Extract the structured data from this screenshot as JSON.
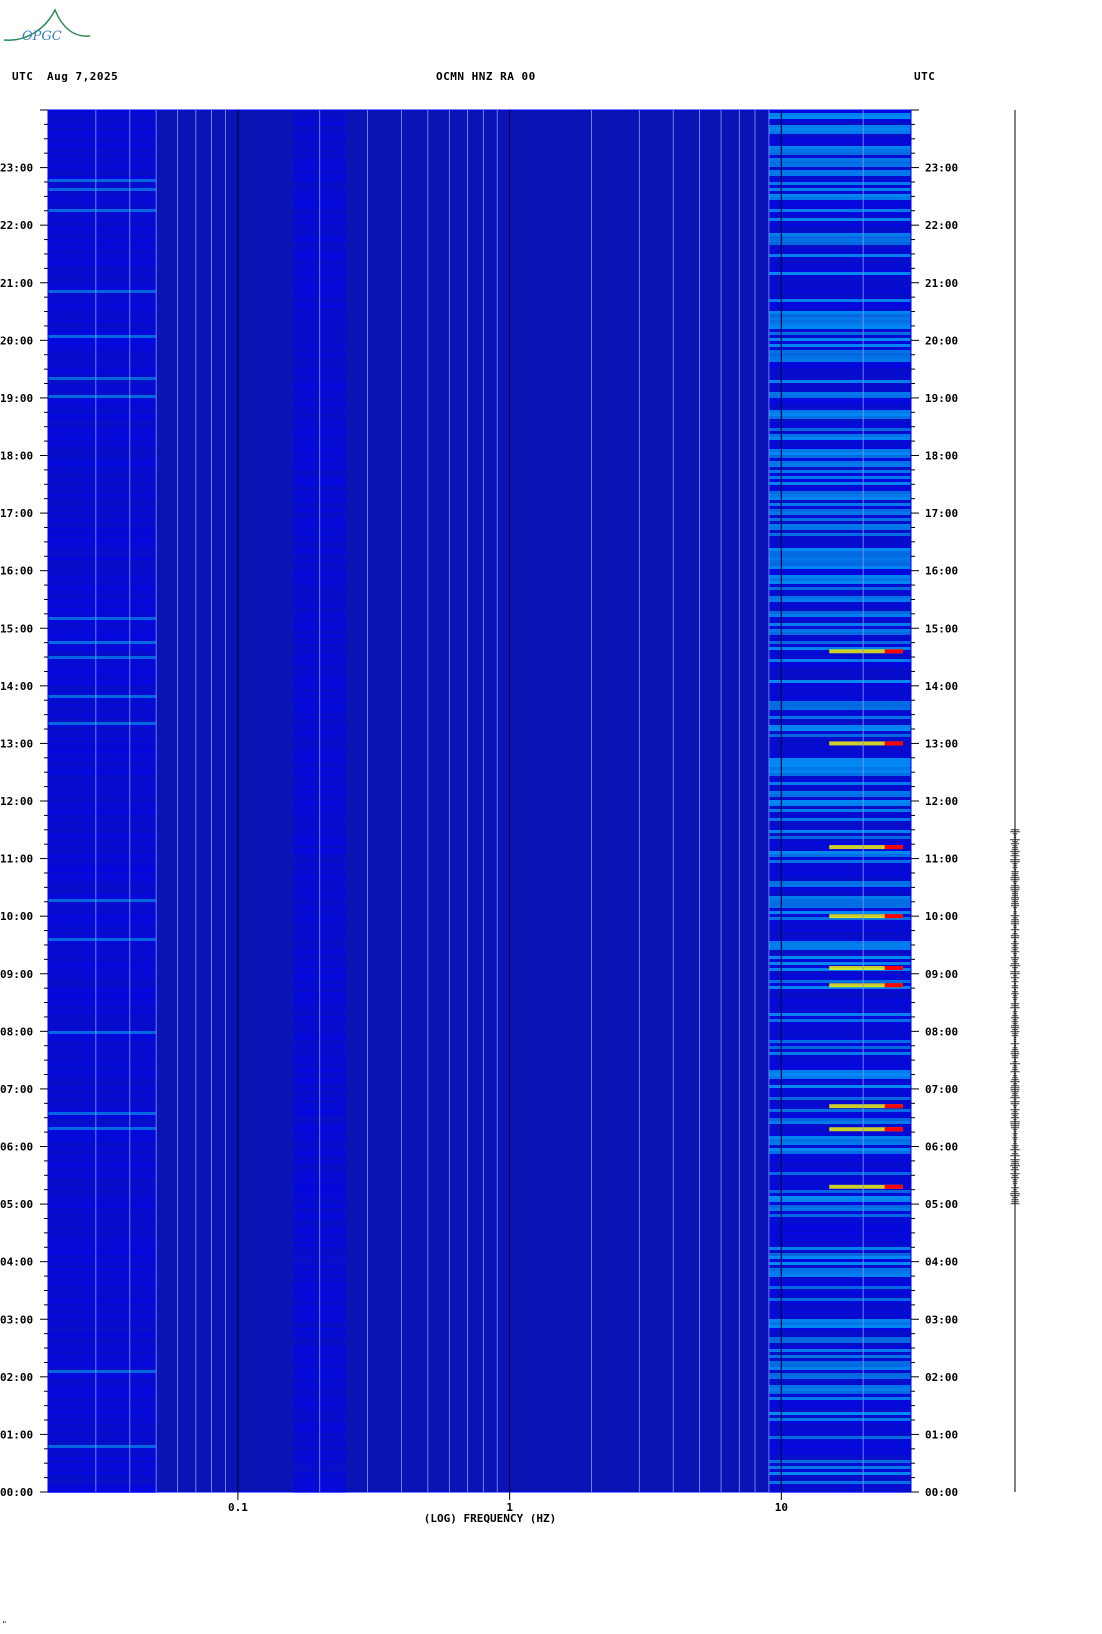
{
  "logo": {
    "text": "OPGC",
    "color": "#2e8b57"
  },
  "header": {
    "left_tz": "UTC",
    "date": "Aug 7,2025",
    "station": "OCMN HNZ RA 00",
    "right_tz": "UTC"
  },
  "corner_mark": "\"",
  "colors": {
    "background": "#0a14b4",
    "frame": "#0000ff",
    "high_energy": "#ffff00",
    "peak": "#ff0000"
  },
  "chart_data": {
    "type": "heatmap",
    "title": "OCMN HNZ RA 00",
    "xlabel": "(LOG) FREQUENCY (HZ)",
    "ylabel": "",
    "x_scale": "log",
    "xlim": [
      0.02,
      30
    ],
    "x_ticks": [
      {
        "value": 0.1,
        "label": "0.1"
      },
      {
        "value": 1,
        "label": "1"
      },
      {
        "value": 10,
        "label": "10"
      }
    ],
    "ylim_hours": [
      0,
      24
    ],
    "y_ticks": [
      "00:00",
      "01:00",
      "02:00",
      "03:00",
      "04:00",
      "05:00",
      "06:00",
      "07:00",
      "08:00",
      "09:00",
      "10:00",
      "11:00",
      "12:00",
      "13:00",
      "14:00",
      "15:00",
      "16:00",
      "17:00",
      "18:00",
      "19:00",
      "20:00",
      "21:00",
      "22:00",
      "23:00"
    ],
    "time_axis_label": "UTC",
    "grid": true,
    "colorscale": [
      "#0000a0",
      "#0000ff",
      "#00a0ff",
      "#00ffff",
      "#ffff00",
      "#ff0000"
    ],
    "energy_bands": [
      {
        "fmin": 0.02,
        "fmax": 0.05,
        "level": 0.35
      },
      {
        "fmin": 0.16,
        "fmax": 0.25,
        "level": 0.3
      },
      {
        "fmin": 9,
        "fmax": 30,
        "level": 0.6
      }
    ],
    "high_energy_hours": [
      5.3,
      6.3,
      6.7,
      8.8,
      9.1,
      10.0,
      11.2,
      13.0,
      14.6
    ],
    "seismogram": {
      "active_hours_start": 5.0,
      "active_hours_end": 11.5
    }
  }
}
